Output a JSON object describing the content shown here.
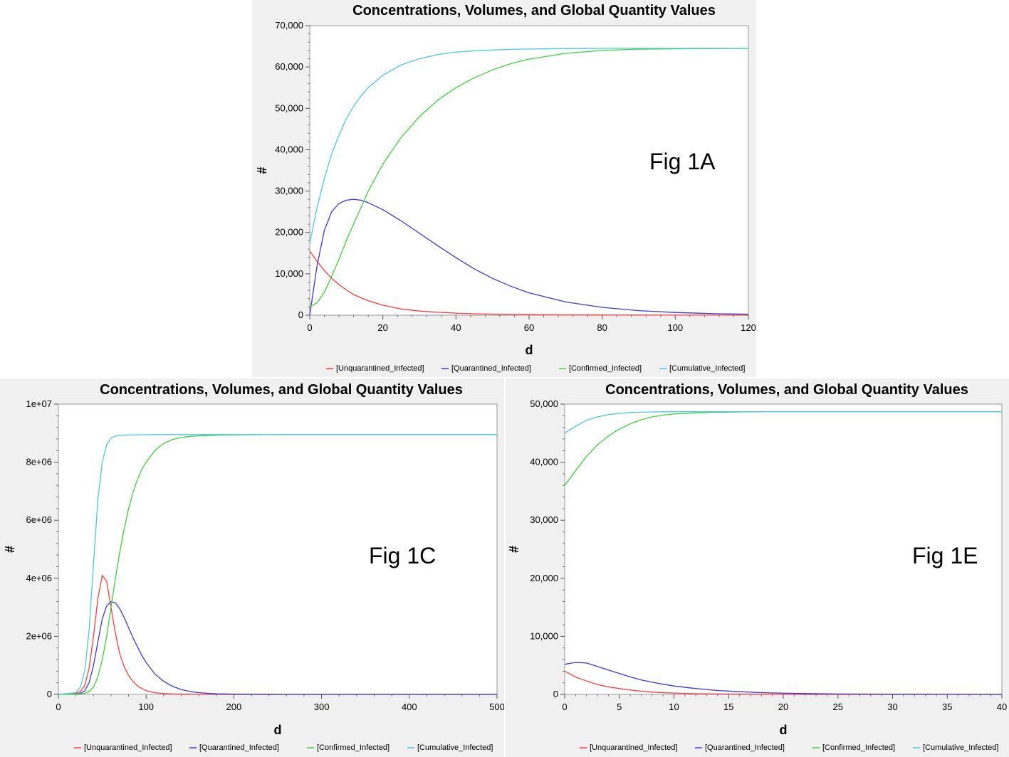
{
  "legend": {
    "items": [
      {
        "label": "[Unquarantined_Infected]",
        "color": "#ff3b3b"
      },
      {
        "label": "[Quarantined_Infected]",
        "color": "#3a3ad6"
      },
      {
        "label": "[Confirmed_Infected]",
        "color": "#3ad43a"
      },
      {
        "label": "[Cumulative_Infected]",
        "color": "#4ac8e6"
      }
    ]
  },
  "chart_data": [
    {
      "type": "line",
      "title": "Concentrations, Volumes, and Global Quantity Values",
      "annotation": "Fig 1A",
      "xlabel": "d",
      "ylabel": "#",
      "xlim": [
        0,
        120
      ],
      "ylim": [
        0,
        70000
      ],
      "xticks": [
        0,
        20,
        40,
        60,
        80,
        100,
        120
      ],
      "xtick_labels": [
        "0",
        "20",
        "40",
        "60",
        "80",
        "100",
        "120"
      ],
      "yticks": [
        0,
        10000,
        20000,
        30000,
        40000,
        50000,
        60000,
        70000
      ],
      "ytick_labels": [
        "0",
        "10,000",
        "20,000",
        "30,000",
        "40,000",
        "50,000",
        "60,000",
        "70,000"
      ],
      "legend_position": "bottom",
      "x": [
        0,
        2,
        4,
        6,
        8,
        10,
        12,
        14,
        16,
        20,
        25,
        30,
        35,
        40,
        45,
        50,
        55,
        60,
        70,
        80,
        90,
        100,
        110,
        120
      ],
      "series": [
        {
          "name": "[Unquarantined_Infected]",
          "color": "#ff3b3b",
          "values": [
            15500,
            13000,
            10800,
            8900,
            7400,
            6100,
            5000,
            4200,
            3500,
            2400,
            1500,
            1000,
            700,
            500,
            350,
            250,
            180,
            130,
            80,
            50,
            30,
            20,
            15,
            10
          ]
        },
        {
          "name": "[Quarantined_Infected]",
          "color": "#3a3ad6",
          "values": [
            0,
            12000,
            20500,
            25000,
            27000,
            27800,
            28000,
            27800,
            27200,
            25500,
            22800,
            19800,
            16800,
            13900,
            11200,
            8900,
            7000,
            5400,
            3200,
            1900,
            1100,
            650,
            380,
            220
          ]
        },
        {
          "name": "[Confirmed_Infected]",
          "color": "#3ad43a",
          "values": [
            2000,
            3000,
            5500,
            9500,
            13500,
            18000,
            22000,
            26000,
            30000,
            36500,
            43000,
            48000,
            52000,
            55000,
            57400,
            59300,
            60800,
            61900,
            63300,
            64000,
            64300,
            64400,
            64450,
            64500
          ]
        },
        {
          "name": "[Cumulative_Infected]",
          "color": "#4ac8e6",
          "values": [
            17500,
            26000,
            33000,
            39000,
            43500,
            47500,
            50500,
            53000,
            55000,
            58000,
            60500,
            62000,
            63000,
            63600,
            63900,
            64100,
            64250,
            64350,
            64450,
            64500,
            64500,
            64500,
            64500,
            64500
          ]
        }
      ]
    },
    {
      "type": "line",
      "title": "Concentrations, Volumes, and Global Quantity Values",
      "annotation": "Fig 1C",
      "xlabel": "d",
      "ylabel": "#",
      "xlim": [
        0,
        500
      ],
      "ylim": [
        0,
        10000000
      ],
      "xticks": [
        0,
        100,
        200,
        300,
        400,
        500
      ],
      "xtick_labels": [
        "0",
        "100",
        "200",
        "300",
        "400",
        "500"
      ],
      "yticks": [
        0,
        2000000,
        4000000,
        6000000,
        8000000,
        10000000
      ],
      "ytick_labels": [
        "0",
        "2e+06",
        "4e+06",
        "6e+06",
        "8e+06",
        "1e+07"
      ],
      "legend_position": "bottom",
      "x": [
        0,
        20,
        25,
        30,
        35,
        40,
        45,
        50,
        55,
        60,
        65,
        70,
        75,
        80,
        85,
        90,
        95,
        100,
        110,
        120,
        130,
        140,
        150,
        160,
        180,
        200,
        250,
        300,
        400,
        500
      ],
      "series": [
        {
          "name": "[Unquarantined_Infected]",
          "color": "#ff3b3b",
          "values": [
            0,
            30000,
            100000,
            300000,
            900000,
            2000000,
            3300000,
            4100000,
            3900000,
            3000000,
            2100000,
            1400000,
            950000,
            650000,
            450000,
            300000,
            200000,
            130000,
            60000,
            30000,
            15000,
            8000,
            5000,
            3000,
            1000,
            500,
            0,
            0,
            0,
            0
          ]
        },
        {
          "name": "[Quarantined_Infected]",
          "color": "#3a3ad6",
          "values": [
            0,
            10000,
            40000,
            120000,
            400000,
            1000000,
            1800000,
            2600000,
            3050000,
            3200000,
            3150000,
            2950000,
            2650000,
            2300000,
            1950000,
            1650000,
            1350000,
            1100000,
            700000,
            450000,
            280000,
            170000,
            100000,
            60000,
            20000,
            8000,
            0,
            0,
            0,
            0
          ]
        },
        {
          "name": "[Confirmed_Infected]",
          "color": "#3ad43a",
          "values": [
            0,
            5000,
            15000,
            40000,
            100000,
            250000,
            600000,
            1200000,
            2000000,
            3000000,
            4000000,
            4900000,
            5700000,
            6400000,
            6950000,
            7400000,
            7750000,
            8000000,
            8400000,
            8650000,
            8780000,
            8850000,
            8890000,
            8910000,
            8930000,
            8940000,
            8950000,
            8950000,
            8950000,
            8950000
          ]
        },
        {
          "name": "[Cumulative_Infected]",
          "color": "#4ac8e6",
          "values": [
            0,
            60000,
            250000,
            800000,
            2200000,
            4500000,
            6700000,
            8000000,
            8600000,
            8830000,
            8900000,
            8920000,
            8930000,
            8935000,
            8940000,
            8940000,
            8945000,
            8945000,
            8950000,
            8950000,
            8950000,
            8950000,
            8950000,
            8950000,
            8950000,
            8950000,
            8950000,
            8950000,
            8950000,
            8950000
          ]
        }
      ]
    },
    {
      "type": "line",
      "title": "Concentrations, Volumes, and Global Quantity Values",
      "annotation": "Fig 1E",
      "xlabel": "d",
      "ylabel": "#",
      "xlim": [
        0,
        40
      ],
      "ylim": [
        0,
        50000
      ],
      "xticks": [
        0,
        5,
        10,
        15,
        20,
        25,
        30,
        35,
        40
      ],
      "xtick_labels": [
        "0",
        "5",
        "10",
        "15",
        "20",
        "25",
        "30",
        "35",
        "40"
      ],
      "yticks": [
        0,
        10000,
        20000,
        30000,
        40000,
        50000
      ],
      "ytick_labels": [
        "0",
        "10,000",
        "20,000",
        "30,000",
        "40,000",
        "50,000"
      ],
      "legend_position": "bottom",
      "x": [
        0,
        1,
        2,
        3,
        4,
        5,
        6,
        7,
        8,
        9,
        10,
        12,
        14,
        16,
        18,
        20,
        25,
        30,
        35,
        40
      ],
      "series": [
        {
          "name": "[Unquarantined_Infected]",
          "color": "#ff3b3b",
          "values": [
            4000,
            3000,
            2300,
            1700,
            1300,
            1000,
            750,
            550,
            400,
            300,
            220,
            120,
            70,
            40,
            25,
            15,
            5,
            0,
            0,
            0
          ]
        },
        {
          "name": "[Quarantined_Infected]",
          "color": "#3a3ad6",
          "values": [
            5200,
            5500,
            5400,
            4800,
            4200,
            3600,
            3000,
            2500,
            2100,
            1750,
            1450,
            1000,
            680,
            460,
            310,
            210,
            70,
            25,
            10,
            0
          ]
        },
        {
          "name": "[Confirmed_Infected]",
          "color": "#3ad43a",
          "values": [
            36000,
            38500,
            41000,
            43000,
            44500,
            45700,
            46600,
            47300,
            47800,
            48100,
            48300,
            48500,
            48600,
            48650,
            48700,
            48700,
            48700,
            48700,
            48700,
            48700
          ]
        },
        {
          "name": "[Cumulative_Infected]",
          "color": "#4ac8e6",
          "values": [
            45000,
            46200,
            47200,
            47800,
            48200,
            48400,
            48550,
            48600,
            48650,
            48680,
            48690,
            48700,
            48700,
            48700,
            48700,
            48700,
            48700,
            48700,
            48700,
            48700
          ]
        }
      ]
    }
  ]
}
